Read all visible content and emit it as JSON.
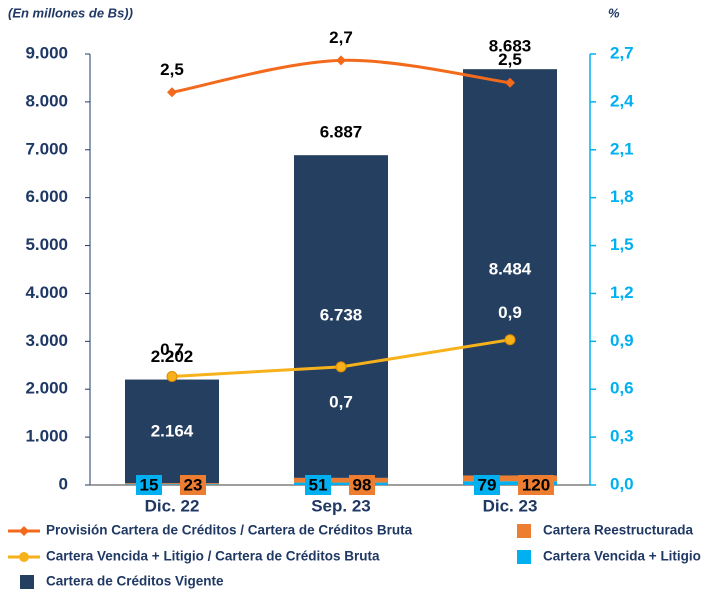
{
  "chart_data": {
    "type": "bar",
    "ylabel": "(En millones de Bs))",
    "y2label": "%",
    "categories": [
      "Dic. 22",
      "Sep. 23",
      "Dic. 23"
    ],
    "total_labels": [
      "2.202",
      "6.887",
      "8.683"
    ],
    "series": [
      {
        "name": "Cartera Vencida + Litigio",
        "color": "#00b0f0",
        "type": "bar",
        "values": [
          15,
          51,
          79
        ]
      },
      {
        "name": "Cartera Reestructurada",
        "color": "#ed7d31",
        "type": "bar",
        "values": [
          23,
          98,
          120
        ]
      },
      {
        "name": "Cartera de Créditos Vigente",
        "color": "#243f60",
        "type": "bar",
        "values": [
          2164,
          6738,
          8484
        ],
        "value_labels": [
          "2.164",
          "6.738",
          "8.484"
        ]
      },
      {
        "name": "Provisión Cartera de Créditos / Cartera de Créditos Bruta",
        "color": "#f36a1c",
        "type": "line",
        "axis": "y2",
        "values": [
          2.46,
          2.66,
          2.52
        ],
        "value_labels": [
          "2,5",
          "2,7",
          "2,5"
        ]
      },
      {
        "name": "Cartera Vencida + Litigio / Cartera de Créditos Bruta",
        "color": "#f7b21b",
        "type": "line",
        "axis": "y2",
        "values": [
          0.68,
          0.74,
          0.91
        ],
        "value_labels": [
          "0,7",
          "0,7",
          "0,9"
        ]
      }
    ],
    "ylim": [
      0,
      9000
    ],
    "yticks": [
      0,
      {
        "value": 1000,
        "label": "1.000"
      },
      {
        "value": 2000,
        "label": "2.000"
      },
      {
        "value": 3000,
        "label": "3.000"
      },
      {
        "value": 4000,
        "label": "4.000"
      },
      {
        "value": 5000,
        "label": "5.000"
      },
      {
        "value": 6000,
        "label": "6.000"
      },
      {
        "value": 7000,
        "label": "7.000"
      },
      {
        "value": 8000,
        "label": "8.000"
      },
      {
        "value": 9000,
        "label": "9.000"
      }
    ],
    "y2lim": [
      0,
      2.7
    ],
    "y2ticks": [
      {
        "value": 0,
        "label": "0,0"
      },
      {
        "value": 0.3,
        "label": "0,3"
      },
      {
        "value": 0.6,
        "label": "0,6"
      },
      {
        "value": 0.9,
        "label": "0,9"
      },
      {
        "value": 1.2,
        "label": "1,2"
      },
      {
        "value": 1.5,
        "label": "1,5"
      },
      {
        "value": 1.8,
        "label": "1,8"
      },
      {
        "value": 2.1,
        "label": "2,1"
      },
      {
        "value": 2.4,
        "label": "2,4"
      },
      {
        "value": 2.7,
        "label": "2,7"
      }
    ]
  }
}
